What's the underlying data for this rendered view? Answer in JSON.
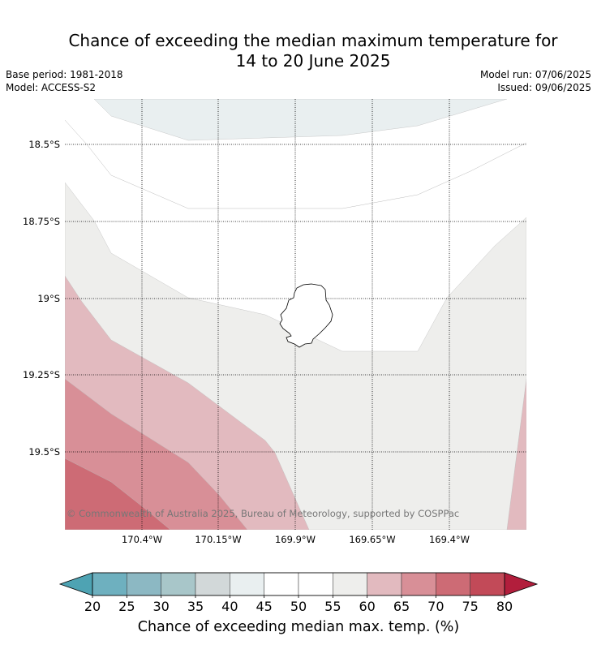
{
  "title": {
    "line1": "Chance of exceeding the median maximum temperature for",
    "line2": "14 to 20 June 2025"
  },
  "meta": {
    "base_period": "Base period: 1981-2018",
    "model": "Model: ACCESS-S2",
    "model_run": "Model run: 07/06/2025",
    "issued": "Issued: 09/06/2025"
  },
  "map": {
    "lat_labels": [
      "18.5°S",
      "18.75°S",
      "19°S",
      "19.25°S",
      "19.5°S"
    ],
    "lon_labels": [
      "170.4°W",
      "170.15°W",
      "169.9°W",
      "169.65°W",
      "169.4°W"
    ],
    "copyright": "© Commonwealth of Australia 2025, Bureau of Meteorology, supported by COSPPac",
    "island": "Niue"
  },
  "colorbar": {
    "label": "Chance of exceeding median max. temp. (%)",
    "ticks": [
      "20",
      "25",
      "30",
      "35",
      "40",
      "45",
      "50",
      "55",
      "60",
      "65",
      "70",
      "75",
      "80"
    ],
    "colors": {
      "under": "#4ea3b3",
      "b20_25": "#6eb0bf",
      "b25_30": "#8cb8c3",
      "b30_35": "#a8c6c9",
      "b35_40": "#d2d8d9",
      "b40_45": "#e9eff0",
      "b45_50": "#ffffff",
      "b50_55": "#ffffff",
      "b55_60": "#eeeeec",
      "b60_65": "#e2babf",
      "b65_70": "#d88f97",
      "b70_75": "#cd6b75",
      "b75_80": "#c24a58",
      "over": "#b21e3c"
    }
  }
}
